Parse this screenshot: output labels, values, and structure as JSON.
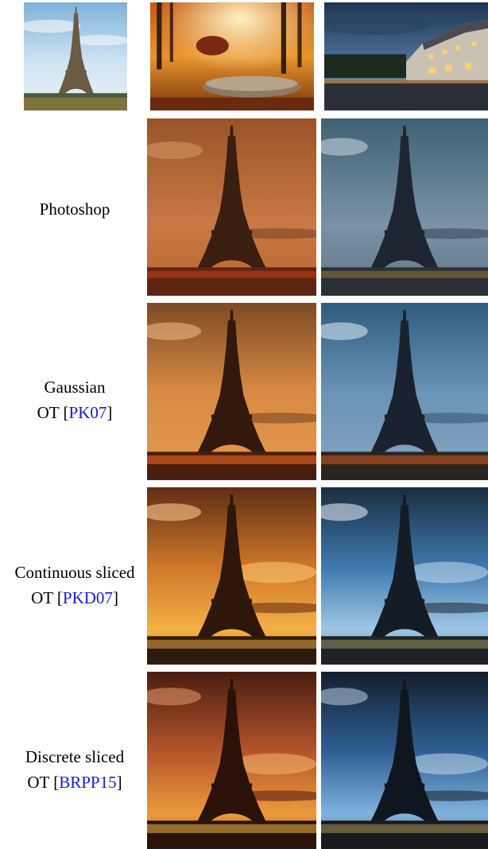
{
  "rows": [
    {
      "label_line1": "Photoshop"
    },
    {
      "label_line1": "Gaussian",
      "label_line2_prefix": "OT [",
      "label_line2_cite": "PK07",
      "label_line2_suffix": "]"
    },
    {
      "label_line1": "Continuous sliced",
      "label_line2_prefix": "OT [",
      "label_line2_cite": "PKD07",
      "label_line2_suffix": "]"
    },
    {
      "label_line1": "Discrete sliced",
      "label_line2_prefix": "OT [",
      "label_line2_cite": "BRPP15",
      "label_line2_suffix": "]"
    }
  ],
  "colors": {
    "citation_link": "#1a1adb",
    "autumn_palette": [
      "#8a3d12",
      "#d4731f",
      "#f0a33a"
    ],
    "night_palette": [
      "#1f3550",
      "#4a6d93",
      "#8fb0cf"
    ],
    "sky_palette": [
      "#a9cce6",
      "#dcecf6"
    ]
  }
}
